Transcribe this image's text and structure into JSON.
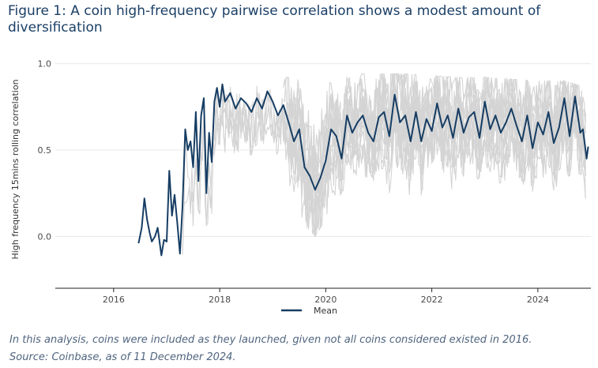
{
  "figure": {
    "title": "Figure 1: A coin high-frequency pairwise correlation shows a modest amount of diversification",
    "note": "In this analysis, coins were included as they launched, given not all coins considered existed in 2016.",
    "source": "Source: Coinbase, as of 11 December 2024."
  },
  "colors": {
    "mean_line": "#163d63",
    "pairwise_lines": "#d4d4d4",
    "grid": "#e8e8e8",
    "axis": "#222222",
    "tick_text": "#4a4a4a"
  },
  "chart_data": {
    "type": "line",
    "title": "Figure 1: A coin high-frequency pairwise correlation shows a modest amount of diversification",
    "xlabel": "",
    "ylabel": "High frequency 15mins rolling correlation",
    "xlim": [
      2014.9,
      2025.0
    ],
    "ylim": [
      -0.3,
      1.03
    ],
    "xticks": [
      2016,
      2018,
      2020,
      2022,
      2024
    ],
    "yticks": [
      0.0,
      0.5,
      1.0
    ],
    "ytick_labels": [
      "0.0",
      "0.5",
      "1.0"
    ],
    "grid": "horizontal",
    "legend": {
      "placement": "bottom-center",
      "entries": [
        "Mean"
      ]
    },
    "series": [
      {
        "name": "Mean",
        "color": "#163d63",
        "x": [
          2016.47,
          2016.53,
          2016.58,
          2016.63,
          2016.68,
          2016.72,
          2016.78,
          2016.83,
          2016.9,
          2016.95,
          2017.0,
          2017.05,
          2017.1,
          2017.15,
          2017.2,
          2017.25,
          2017.3,
          2017.35,
          2017.4,
          2017.45,
          2017.5,
          2017.55,
          2017.6,
          2017.65,
          2017.7,
          2017.75,
          2017.8,
          2017.85,
          2017.9,
          2017.95,
          2018.0,
          2018.05,
          2018.1,
          2018.2,
          2018.3,
          2018.4,
          2018.5,
          2018.6,
          2018.7,
          2018.8,
          2018.9,
          2019.0,
          2019.1,
          2019.2,
          2019.3,
          2019.4,
          2019.5,
          2019.6,
          2019.7,
          2019.8,
          2019.9,
          2020.0,
          2020.1,
          2020.2,
          2020.3,
          2020.4,
          2020.5,
          2020.6,
          2020.7,
          2020.8,
          2020.9,
          2021.0,
          2021.1,
          2021.2,
          2021.3,
          2021.4,
          2021.5,
          2021.6,
          2021.7,
          2021.8,
          2021.9,
          2022.0,
          2022.1,
          2022.2,
          2022.3,
          2022.4,
          2022.5,
          2022.6,
          2022.7,
          2022.8,
          2022.9,
          2023.0,
          2023.1,
          2023.2,
          2023.3,
          2023.4,
          2023.5,
          2023.6,
          2023.7,
          2023.8,
          2023.9,
          2024.0,
          2024.1,
          2024.2,
          2024.3,
          2024.4,
          2024.5,
          2024.6,
          2024.7,
          2024.8,
          2024.85,
          2024.92,
          2024.95
        ],
        "y": [
          -0.04,
          0.05,
          0.22,
          0.1,
          0.02,
          -0.03,
          0.0,
          0.05,
          -0.11,
          -0.02,
          -0.03,
          0.38,
          0.12,
          0.24,
          0.08,
          -0.1,
          0.18,
          0.62,
          0.5,
          0.55,
          0.4,
          0.72,
          0.32,
          0.7,
          0.8,
          0.25,
          0.6,
          0.43,
          0.78,
          0.86,
          0.75,
          0.88,
          0.78,
          0.83,
          0.74,
          0.8,
          0.77,
          0.72,
          0.8,
          0.74,
          0.84,
          0.78,
          0.7,
          0.76,
          0.66,
          0.55,
          0.62,
          0.4,
          0.35,
          0.27,
          0.34,
          0.44,
          0.62,
          0.58,
          0.45,
          0.7,
          0.6,
          0.66,
          0.7,
          0.6,
          0.55,
          0.69,
          0.72,
          0.58,
          0.82,
          0.66,
          0.7,
          0.55,
          0.72,
          0.55,
          0.68,
          0.61,
          0.77,
          0.63,
          0.7,
          0.57,
          0.74,
          0.6,
          0.69,
          0.72,
          0.57,
          0.78,
          0.62,
          0.7,
          0.6,
          0.66,
          0.74,
          0.64,
          0.55,
          0.7,
          0.51,
          0.66,
          0.59,
          0.72,
          0.54,
          0.63,
          0.8,
          0.58,
          0.81,
          0.6,
          0.62,
          0.45,
          0.52
        ]
      }
    ],
    "pairwise_band": {
      "description": "grey lines show individual coin pair correlations",
      "x": [
        2017.3,
        2018.0,
        2019.0,
        2019.5,
        2019.8,
        2020.0,
        2020.5,
        2021.0,
        2021.5,
        2022.0,
        2022.5,
        2023.0,
        2023.5,
        2024.0,
        2024.5,
        2024.92
      ],
      "upper": [
        0.75,
        0.92,
        0.92,
        0.92,
        0.92,
        0.93,
        0.94,
        0.94,
        0.94,
        0.93,
        0.92,
        0.92,
        0.91,
        0.9,
        0.9,
        0.86
      ],
      "lower": [
        -0.26,
        0.24,
        0.38,
        0.1,
        0.0,
        0.1,
        0.35,
        0.25,
        0.1,
        0.3,
        0.2,
        0.25,
        0.22,
        0.2,
        0.2,
        0.22
      ]
    }
  }
}
